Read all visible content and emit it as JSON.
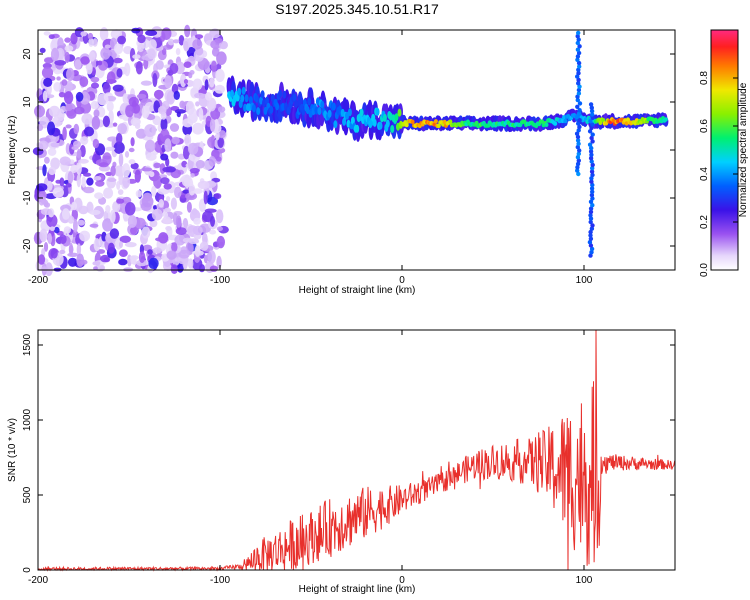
{
  "title": "S197.2025.345.10.51.R17",
  "colors": {
    "snr_line": "#e8302c",
    "axis": "#000000"
  },
  "chart_data": [
    {
      "type": "heatmap",
      "xlabel": "Height of straight line (km)",
      "ylabel": "Frequency (Hz)",
      "xlim": [
        -200,
        150
      ],
      "ylim": [
        -25,
        25
      ],
      "xticks": [
        -200,
        -100,
        0,
        100
      ],
      "yticks": [
        -20,
        -10,
        0,
        10,
        20
      ],
      "colorbar": {
        "label": "Normalized spectral amplitude",
        "range": [
          0,
          1
        ],
        "ticks": [
          "0.0",
          "0.2",
          "0.4",
          "0.6",
          "0.8"
        ]
      },
      "noise_region": {
        "x_range": [
          -200,
          -98
        ],
        "freq_range": [
          -25,
          25
        ]
      },
      "ridge": [
        {
          "x": -95,
          "f": 11.5,
          "a": 0.45
        },
        {
          "x": -85,
          "f": 10.5,
          "a": 0.4
        },
        {
          "x": -75,
          "f": 9.5,
          "a": 0.35
        },
        {
          "x": -65,
          "f": 10.0,
          "a": 0.35
        },
        {
          "x": -55,
          "f": 9.0,
          "a": 0.35
        },
        {
          "x": -45,
          "f": 8.5,
          "a": 0.4
        },
        {
          "x": -35,
          "f": 7.0,
          "a": 0.4
        },
        {
          "x": -25,
          "f": 6.0,
          "a": 0.45
        },
        {
          "x": -15,
          "f": 6.5,
          "a": 0.45
        },
        {
          "x": -5,
          "f": 6.0,
          "a": 0.5
        },
        {
          "x": 5,
          "f": 5.5,
          "a": 0.85
        },
        {
          "x": 15,
          "f": 5.5,
          "a": 0.85
        },
        {
          "x": 25,
          "f": 5.5,
          "a": 0.8
        },
        {
          "x": 35,
          "f": 5.5,
          "a": 0.55
        },
        {
          "x": 45,
          "f": 5.5,
          "a": 0.6
        },
        {
          "x": 55,
          "f": 5.5,
          "a": 0.55
        },
        {
          "x": 65,
          "f": 5.5,
          "a": 0.55
        },
        {
          "x": 75,
          "f": 5.5,
          "a": 0.6
        },
        {
          "x": 85,
          "f": 6.0,
          "a": 0.5
        },
        {
          "x": 95,
          "f": 7.0,
          "a": 0.4
        },
        {
          "x": 105,
          "f": 6.0,
          "a": 0.5
        },
        {
          "x": 115,
          "f": 6.0,
          "a": 0.9
        },
        {
          "x": 125,
          "f": 6.0,
          "a": 0.85
        },
        {
          "x": 135,
          "f": 6.0,
          "a": 0.65
        },
        {
          "x": 145,
          "f": 6.5,
          "a": 0.55
        }
      ]
    },
    {
      "type": "line",
      "xlabel": "Height of straight line (km)",
      "ylabel": "SNR (10 * v/v)",
      "xlim": [
        -200,
        150
      ],
      "ylim": [
        0,
        1600
      ],
      "xticks": [
        -200,
        -100,
        0,
        100
      ],
      "yticks": [
        0,
        500,
        1000,
        1500
      ],
      "envelope": [
        {
          "x": -200,
          "mean": 8,
          "amp": 10
        },
        {
          "x": -100,
          "mean": 10,
          "amp": 10
        },
        {
          "x": -87,
          "mean": 25,
          "amp": 20
        },
        {
          "x": -80,
          "mean": 80,
          "amp": 110
        },
        {
          "x": -70,
          "mean": 120,
          "amp": 140
        },
        {
          "x": -60,
          "mean": 170,
          "amp": 180
        },
        {
          "x": -50,
          "mean": 220,
          "amp": 180
        },
        {
          "x": -40,
          "mean": 280,
          "amp": 200
        },
        {
          "x": -30,
          "mean": 330,
          "amp": 190
        },
        {
          "x": -20,
          "mean": 380,
          "amp": 180
        },
        {
          "x": -10,
          "mean": 420,
          "amp": 140
        },
        {
          "x": 0,
          "mean": 470,
          "amp": 100
        },
        {
          "x": 10,
          "mean": 520,
          "amp": 80
        },
        {
          "x": 20,
          "mean": 570,
          "amp": 70
        },
        {
          "x": 30,
          "mean": 640,
          "amp": 80
        },
        {
          "x": 40,
          "mean": 700,
          "amp": 100
        },
        {
          "x": 50,
          "mean": 720,
          "amp": 120
        },
        {
          "x": 60,
          "mean": 730,
          "amp": 140
        },
        {
          "x": 70,
          "mean": 720,
          "amp": 160
        },
        {
          "x": 80,
          "mean": 700,
          "amp": 250
        },
        {
          "x": 90,
          "mean": 650,
          "amp": 450
        },
        {
          "x": 100,
          "mean": 620,
          "amp": 600
        },
        {
          "x": 108,
          "mean": 640,
          "amp": 650
        },
        {
          "x": 110,
          "mean": 720,
          "amp": 60
        },
        {
          "x": 150,
          "mean": 700,
          "amp": 30
        }
      ]
    }
  ]
}
